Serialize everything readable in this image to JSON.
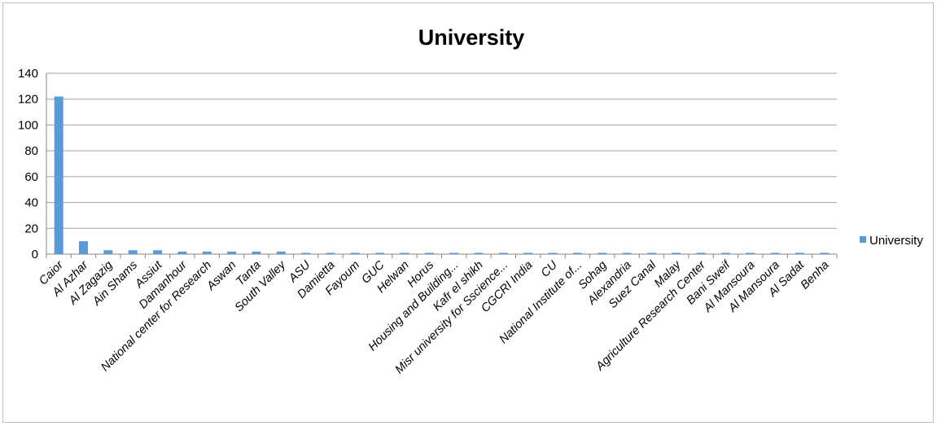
{
  "chart_data": {
    "type": "bar",
    "title": "University",
    "xlabel": "",
    "ylabel": "",
    "ylim": [
      0,
      140
    ],
    "yticks": [
      0,
      20,
      40,
      60,
      80,
      100,
      120,
      140
    ],
    "grid": true,
    "legend_position": "right",
    "categories": [
      "Caior",
      "Al Azhar",
      "Al Zagazig",
      "Ain Shams",
      "Assiut",
      "Damanhour",
      "National center for Research",
      "Aswan",
      "Tanta",
      "South Valley",
      "ASU",
      "Damietta",
      "Fayoum",
      "GUC",
      "Helwan",
      "Horus",
      "Housing and Building...",
      "Kafr el shikh",
      "Misr university for Sscience...",
      "CGCRI India",
      "CU",
      "National Institute of...",
      "Sohag",
      "Alexandria",
      "Suez Canal",
      "Malay",
      "Agriculture Research Center",
      "Bani Sweif",
      "Al Mansoura",
      "Al Mansoura",
      "Al Sadat",
      "Benha"
    ],
    "series": [
      {
        "name": "University",
        "color": "#5b9bd5",
        "values": [
          122,
          10,
          3,
          3,
          3,
          2,
          2,
          2,
          2,
          2,
          1,
          1,
          1,
          1,
          1,
          1,
          1,
          1,
          1,
          1,
          1,
          1,
          1,
          1,
          1,
          1,
          1,
          1,
          1,
          1,
          1,
          1
        ]
      }
    ]
  }
}
